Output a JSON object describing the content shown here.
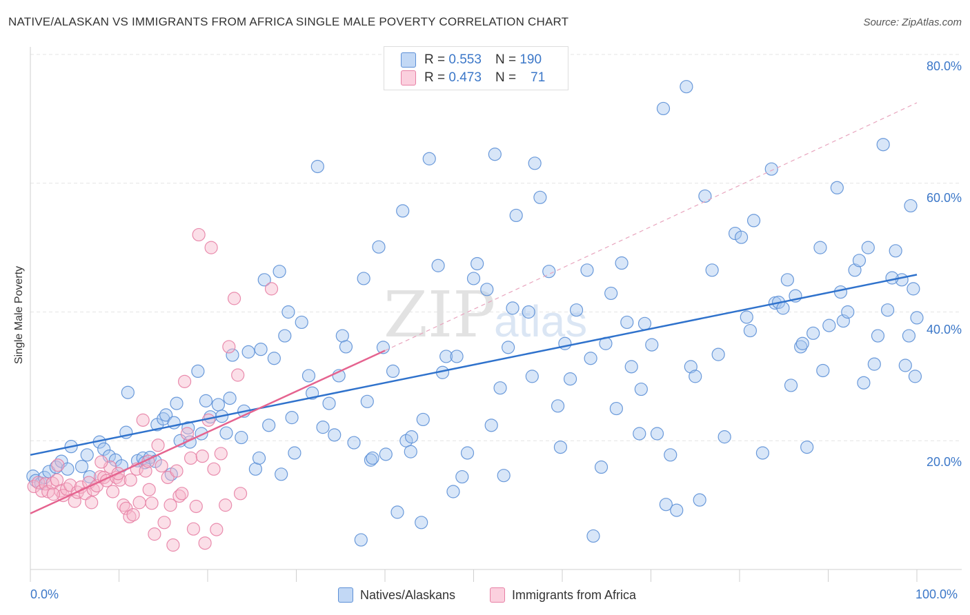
{
  "title": "NATIVE/ALASKAN VS IMMIGRANTS FROM AFRICA SINGLE MALE POVERTY CORRELATION CHART",
  "source": "Source: ZipAtlas.com",
  "watermark": {
    "zip": "ZIP",
    "atlas": "atlas"
  },
  "legend": {
    "rows": [
      {
        "r_label": "R =",
        "r_value": "0.553",
        "n_label": "N =",
        "n_value": "190",
        "color": "#a8c8f0"
      },
      {
        "r_label": "R =",
        "r_value": "0.473",
        "n_label": "N =",
        "n_value": "71",
        "color": "#f7b8cc"
      }
    ]
  },
  "bottom_legend": [
    {
      "label": "Natives/Alaskans",
      "color": "#a8c8f0"
    },
    {
      "label": "Immigrants from Africa",
      "color": "#f7b8cc"
    }
  ],
  "chart_data": {
    "type": "scatter",
    "title": "NATIVE/ALASKAN VS IMMIGRANTS FROM AFRICA SINGLE MALE POVERTY CORRELATION CHART",
    "xlabel": "",
    "ylabel": "Single Male Poverty",
    "xlim": [
      0,
      100
    ],
    "ylim": [
      0,
      80
    ],
    "x_tick_labels": [
      "0.0%",
      "100.0%"
    ],
    "y_ticks": [
      20,
      40,
      60,
      80
    ],
    "y_tick_labels": [
      "20.0%",
      "40.0%",
      "60.0%",
      "80.0%"
    ],
    "grid": true,
    "series": [
      {
        "name": "Natives/Alaskans",
        "color": "#5b8fd6",
        "fill": "#a8c8f0",
        "trend": {
          "x": [
            0,
            100
          ],
          "y": [
            17.8,
            45.8
          ],
          "color": "#2f72cc"
        },
        "points": [
          [
            0.3,
            14.5
          ],
          [
            0.6,
            13.8
          ],
          [
            1.2,
            13.4
          ],
          [
            1.6,
            14.3
          ],
          [
            2.1,
            15.2
          ],
          [
            2.9,
            15.9
          ],
          [
            3.5,
            16.8
          ],
          [
            4.2,
            15.6
          ],
          [
            4.6,
            19.1
          ],
          [
            5.8,
            16.0
          ],
          [
            6.4,
            17.8
          ],
          [
            6.7,
            14.4
          ],
          [
            7.8,
            19.8
          ],
          [
            8.3,
            18.7
          ],
          [
            8.9,
            17.6
          ],
          [
            9.6,
            17.0
          ],
          [
            10.3,
            16.1
          ],
          [
            10.8,
            21.3
          ],
          [
            11.0,
            27.5
          ],
          [
            12.1,
            16.9
          ],
          [
            12.7,
            17.3
          ],
          [
            12.9,
            16.6
          ],
          [
            13.5,
            17.4
          ],
          [
            14.1,
            16.8
          ],
          [
            14.3,
            22.5
          ],
          [
            15.0,
            23.4
          ],
          [
            15.3,
            24.0
          ],
          [
            15.9,
            14.8
          ],
          [
            16.2,
            22.8
          ],
          [
            16.5,
            25.8
          ],
          [
            16.9,
            20.0
          ],
          [
            17.8,
            22.0
          ],
          [
            18.0,
            19.8
          ],
          [
            18.9,
            30.8
          ],
          [
            19.3,
            21.1
          ],
          [
            19.8,
            26.2
          ],
          [
            20.3,
            23.7
          ],
          [
            21.2,
            25.6
          ],
          [
            21.6,
            23.8
          ],
          [
            22.1,
            21.2
          ],
          [
            22.5,
            26.6
          ],
          [
            22.8,
            33.3
          ],
          [
            23.8,
            20.5
          ],
          [
            24.1,
            24.6
          ],
          [
            24.6,
            33.8
          ],
          [
            25.4,
            15.6
          ],
          [
            25.8,
            17.3
          ],
          [
            26.0,
            34.2
          ],
          [
            26.4,
            45.0
          ],
          [
            26.9,
            22.4
          ],
          [
            27.5,
            32.8
          ],
          [
            28.1,
            46.3
          ],
          [
            28.3,
            14.8
          ],
          [
            28.7,
            36.3
          ],
          [
            29.1,
            40.0
          ],
          [
            29.5,
            23.6
          ],
          [
            29.8,
            18.1
          ],
          [
            30.6,
            38.4
          ],
          [
            31.4,
            30.1
          ],
          [
            31.8,
            27.4
          ],
          [
            32.4,
            62.6
          ],
          [
            33.0,
            22.1
          ],
          [
            33.7,
            25.8
          ],
          [
            34.3,
            20.9
          ],
          [
            34.8,
            30.1
          ],
          [
            35.2,
            36.3
          ],
          [
            35.6,
            34.6
          ],
          [
            36.5,
            19.7
          ],
          [
            37.3,
            4.6
          ],
          [
            37.6,
            45.2
          ],
          [
            38.0,
            26.1
          ],
          [
            38.4,
            17.0
          ],
          [
            38.6,
            17.3
          ],
          [
            39.3,
            50.1
          ],
          [
            39.8,
            34.5
          ],
          [
            40.1,
            17.9
          ],
          [
            40.9,
            30.8
          ],
          [
            41.4,
            8.9
          ],
          [
            42.0,
            55.7
          ],
          [
            42.4,
            20.0
          ],
          [
            42.9,
            18.3
          ],
          [
            43.0,
            20.6
          ],
          [
            44.1,
            7.3
          ],
          [
            44.3,
            23.3
          ],
          [
            45.0,
            63.8
          ],
          [
            46.0,
            47.2
          ],
          [
            46.5,
            30.6
          ],
          [
            46.9,
            33.1
          ],
          [
            47.7,
            12.1
          ],
          [
            48.1,
            33.1
          ],
          [
            48.7,
            14.4
          ],
          [
            49.3,
            18.1
          ],
          [
            50.0,
            45.2
          ],
          [
            50.4,
            47.5
          ],
          [
            51.5,
            43.5
          ],
          [
            52.0,
            22.4
          ],
          [
            52.4,
            64.5
          ],
          [
            53.0,
            28.2
          ],
          [
            53.4,
            14.6
          ],
          [
            53.9,
            34.5
          ],
          [
            54.4,
            40.6
          ],
          [
            54.8,
            55.0
          ],
          [
            56.2,
            40.0
          ],
          [
            56.6,
            30.0
          ],
          [
            56.9,
            63.1
          ],
          [
            57.5,
            57.8
          ],
          [
            58.5,
            46.3
          ],
          [
            59.5,
            25.4
          ],
          [
            59.8,
            19.0
          ],
          [
            60.3,
            35.1
          ],
          [
            60.9,
            29.6
          ],
          [
            61.6,
            40.3
          ],
          [
            62.8,
            46.5
          ],
          [
            63.2,
            32.8
          ],
          [
            63.5,
            5.2
          ],
          [
            64.4,
            15.9
          ],
          [
            64.9,
            35.1
          ],
          [
            65.5,
            42.9
          ],
          [
            66.1,
            25.0
          ],
          [
            66.7,
            47.6
          ],
          [
            67.3,
            38.4
          ],
          [
            67.8,
            31.5
          ],
          [
            68.7,
            21.1
          ],
          [
            68.9,
            28.0
          ],
          [
            69.3,
            38.2
          ],
          [
            70.1,
            34.9
          ],
          [
            70.7,
            21.1
          ],
          [
            71.4,
            71.6
          ],
          [
            71.7,
            10.1
          ],
          [
            72.2,
            17.8
          ],
          [
            72.9,
            9.2
          ],
          [
            74.0,
            75.0
          ],
          [
            74.5,
            31.5
          ],
          [
            75.0,
            30.0
          ],
          [
            75.5,
            10.8
          ],
          [
            76.1,
            58.0
          ],
          [
            76.9,
            46.5
          ],
          [
            77.6,
            33.4
          ],
          [
            78.3,
            20.6
          ],
          [
            79.5,
            52.2
          ],
          [
            80.2,
            51.6
          ],
          [
            80.8,
            39.2
          ],
          [
            81.2,
            37.1
          ],
          [
            81.6,
            54.2
          ],
          [
            82.6,
            18.1
          ],
          [
            83.6,
            62.2
          ],
          [
            84.0,
            41.4
          ],
          [
            84.4,
            41.5
          ],
          [
            84.9,
            40.6
          ],
          [
            85.4,
            45.0
          ],
          [
            85.8,
            28.6
          ],
          [
            86.3,
            42.5
          ],
          [
            86.9,
            34.6
          ],
          [
            87.1,
            35.1
          ],
          [
            87.6,
            19.0
          ],
          [
            88.3,
            36.7
          ],
          [
            89.1,
            50.0
          ],
          [
            89.4,
            30.9
          ],
          [
            90.1,
            37.9
          ],
          [
            91.0,
            59.3
          ],
          [
            91.4,
            43.1
          ],
          [
            91.7,
            38.6
          ],
          [
            92.2,
            40.0
          ],
          [
            93.0,
            46.5
          ],
          [
            93.5,
            48.0
          ],
          [
            94.0,
            29.0
          ],
          [
            94.5,
            50.0
          ],
          [
            95.2,
            31.9
          ],
          [
            95.6,
            36.3
          ],
          [
            96.2,
            66.0
          ],
          [
            96.7,
            40.3
          ],
          [
            97.6,
            49.5
          ],
          [
            98.3,
            45.0
          ],
          [
            98.7,
            31.7
          ],
          [
            99.1,
            36.3
          ],
          [
            99.3,
            56.5
          ],
          [
            99.8,
            30.0
          ],
          [
            100.0,
            39.1
          ],
          [
            99.6,
            43.6
          ],
          [
            97.2,
            45.3
          ]
        ]
      },
      {
        "name": "Immigrants from Africa",
        "color": "#e77fa4",
        "fill": "#f7b8cc",
        "trend": {
          "x": [
            0,
            40.0
          ],
          "y": [
            8.7,
            34.0
          ],
          "color": "#e5638f"
        },
        "trend_extension": {
          "x": [
            40.0,
            100
          ],
          "y": [
            34.0,
            72.5
          ],
          "color": "#e8a4bd"
        },
        "points": [
          [
            0.4,
            12.9
          ],
          [
            0.9,
            13.5
          ],
          [
            1.3,
            12.2
          ],
          [
            1.7,
            13.3
          ],
          [
            2.0,
            12.1
          ],
          [
            2.5,
            13.4
          ],
          [
            3.0,
            13.9
          ],
          [
            3.4,
            12.2
          ],
          [
            3.7,
            11.5
          ],
          [
            4.1,
            12.5
          ],
          [
            4.5,
            13.1
          ],
          [
            5.0,
            10.6
          ],
          [
            5.3,
            12.0
          ],
          [
            5.7,
            12.8
          ],
          [
            6.2,
            11.8
          ],
          [
            6.6,
            13.5
          ],
          [
            7.1,
            12.4
          ],
          [
            7.5,
            13.0
          ],
          [
            7.9,
            14.4
          ],
          [
            8.3,
            14.3
          ],
          [
            8.6,
            13.8
          ],
          [
            9.0,
            15.9
          ],
          [
            9.3,
            12.1
          ],
          [
            9.7,
            14.3
          ],
          [
            10.1,
            13.9
          ],
          [
            10.5,
            10.0
          ],
          [
            10.8,
            9.5
          ],
          [
            11.2,
            8.2
          ],
          [
            11.6,
            8.5
          ],
          [
            12.0,
            15.6
          ],
          [
            12.3,
            10.4
          ],
          [
            12.7,
            23.2
          ],
          [
            13.0,
            15.3
          ],
          [
            13.4,
            12.4
          ],
          [
            13.7,
            10.3
          ],
          [
            14.0,
            5.5
          ],
          [
            14.4,
            19.3
          ],
          [
            14.8,
            16.1
          ],
          [
            15.1,
            7.3
          ],
          [
            15.5,
            14.3
          ],
          [
            15.8,
            10.0
          ],
          [
            16.1,
            3.8
          ],
          [
            16.5,
            15.3
          ],
          [
            16.8,
            11.4
          ],
          [
            17.1,
            11.8
          ],
          [
            17.4,
            29.2
          ],
          [
            17.7,
            21.1
          ],
          [
            18.1,
            17.3
          ],
          [
            18.4,
            6.3
          ],
          [
            18.7,
            9.8
          ],
          [
            19.0,
            52.0
          ],
          [
            19.4,
            17.6
          ],
          [
            19.7,
            4.1
          ],
          [
            20.1,
            23.2
          ],
          [
            20.4,
            50.0
          ],
          [
            20.7,
            15.6
          ],
          [
            21.0,
            6.2
          ],
          [
            21.5,
            18.0
          ],
          [
            22.0,
            10.0
          ],
          [
            22.4,
            34.6
          ],
          [
            23.0,
            42.1
          ],
          [
            23.4,
            30.2
          ],
          [
            23.7,
            11.8
          ],
          [
            27.2,
            43.6
          ],
          [
            3.1,
            16.2
          ],
          [
            2.6,
            11.7
          ],
          [
            6.9,
            10.4
          ],
          [
            8.0,
            16.7
          ],
          [
            9.9,
            14.9
          ],
          [
            11.3,
            13.9
          ],
          [
            13.3,
            16.8
          ]
        ]
      }
    ]
  }
}
